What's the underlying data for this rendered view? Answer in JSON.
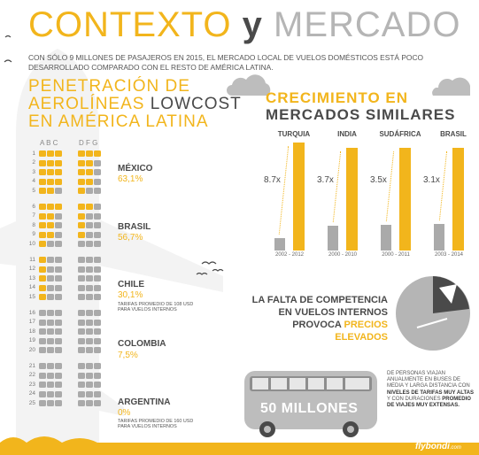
{
  "header": {
    "title_part1": "CONTEXTO",
    "title_part2": "y",
    "title_part3": "MERCADO",
    "intro": "CON SÓLO 9 MILLONES DE PASAJEROS EN 2015, EL MERCADO LOCAL DE VUELOS DOMÉSTICOS ESTÁ POCO DESARROLLADO COMPARADO CON EL RESTO DE AMÉRICA LATINA."
  },
  "penetration": {
    "title_line1": "PENETRACIÓN DE",
    "title_line2a": "AEROLÍNEAS ",
    "title_line2b": "LOWCOST",
    "title_line3": "EN AMÉRICA LATINA",
    "col_left": "A  B  C",
    "col_right": "D  F  G",
    "countries": [
      {
        "name": "MÉXICO",
        "pct": "63,1%",
        "note": ""
      },
      {
        "name": "BRASIL",
        "pct": "56,7%",
        "note": ""
      },
      {
        "name": "CHILE",
        "pct": "30,1%",
        "note_l1": "TARIFAS PROMEDIO DE 108 USD",
        "note_l2": "PARA VUELOS INTERNOS"
      },
      {
        "name": "COLOMBIA",
        "pct": "7,5%",
        "note": ""
      },
      {
        "name": "ARGENTINA",
        "pct": "0%",
        "note_l1": "TARIFAS PROMEDIO DE 160 USD",
        "note_l2": "PARA VUELOS INTERNOS"
      }
    ],
    "row_labels": [
      "1",
      "2",
      "3",
      "4",
      "5",
      "6",
      "7",
      "8",
      "9",
      "10",
      "11",
      "12",
      "13",
      "14",
      "15",
      "16",
      "17",
      "18",
      "19",
      "20",
      "21",
      "22",
      "23",
      "24",
      "25"
    ],
    "seat_rows_yellow": [
      4,
      3,
      3,
      3,
      2,
      3,
      2,
      2,
      2,
      1,
      1,
      1,
      1,
      1,
      1,
      0,
      0,
      0,
      0,
      0,
      0,
      0,
      0,
      0,
      0
    ]
  },
  "growth": {
    "title_line1": "CRECIMIENTO EN",
    "title_line2": "MERCADOS SIMILARES",
    "markets": [
      {
        "country": "TURQUIA",
        "multiplier": "8.7x",
        "period": "2002 - 2012",
        "growth": 8.7
      },
      {
        "country": "INDIA",
        "multiplier": "3.7x",
        "period": "2000 - 2010",
        "growth": 3.7
      },
      {
        "country": "SUDÁFRICA",
        "multiplier": "3.5x",
        "period": "2000 - 2011",
        "growth": 3.5
      },
      {
        "country": "BRASIL",
        "multiplier": "3.1x",
        "period": "2003 - 2014",
        "growth": 3.1
      }
    ]
  },
  "competition": {
    "line1": "LA FALTA DE COMPETENCIA",
    "line2": "EN VUELOS INTERNOS",
    "line3": "PROVOCA ",
    "line3_hl": "PRECIOS",
    "line4_hl": "ELEVADOS"
  },
  "bus": {
    "label": "50 MILLONES",
    "desc_a": "DE PERSONAS VIAJAN ANUALMENTE EN BUSES DE MEDIA Y LARGA DISTANCIA CON ",
    "desc_b": "NIVELES DE TARIFAS MUY ALTAS",
    "desc_c": " Y CON DURACIONES ",
    "desc_d": "PROMEDIO DE VIAJES MUY EXTENSAS."
  },
  "brand": {
    "logo": "flybondi",
    "logo_suffix": ".com"
  },
  "colors": {
    "accent": "#f2b51c",
    "dark": "#4a4a4a",
    "grey": "#aaaaaa",
    "plane": "#f2f2f2"
  }
}
